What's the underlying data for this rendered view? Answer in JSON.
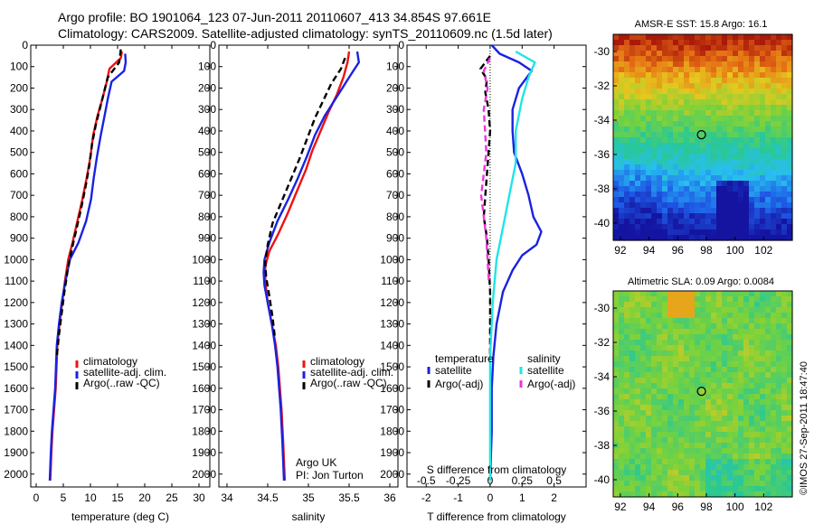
{
  "header": {
    "line1": "Argo profile: BO 1901064_123 07-Jun-2011 20110607_413 34.854S 97.661E",
    "line2": "Climatology: CARS2009. Satellite-adjusted climatology: synTS_20110609.nc (1.5d later)"
  },
  "colors": {
    "red": "#ee1111",
    "blue": "#1a22e0",
    "black": "#000000",
    "cyan": "#22e4e6",
    "magenta": "#ee33dd"
  },
  "depth_ticks": [
    "0",
    "100",
    "200",
    "300",
    "400",
    "500",
    "600",
    "700",
    "800",
    "900",
    "1000",
    "1100",
    "1200",
    "1300",
    "1400",
    "1500",
    "1600",
    "1700",
    "1800",
    "1900",
    "2000"
  ],
  "chart_data": [
    {
      "type": "line",
      "xlabel": "temperature (deg C)",
      "xticks": [
        "0",
        "5",
        "10",
        "15",
        "20",
        "25",
        "30"
      ],
      "xlim": [
        -1,
        32
      ],
      "ylim": [
        2060,
        0
      ],
      "legend": [
        "climatology",
        "satellite-adj. clim.",
        "Argo(..raw -QC)"
      ],
      "series": [
        {
          "name": "climatology",
          "color": "red",
          "x": [
            15.8,
            15.6,
            13.5,
            13.0,
            12.2,
            11.3,
            10.5,
            10.0,
            9.3,
            8.5,
            7.6,
            6.7,
            5.9,
            5.3,
            4.8,
            4.3,
            3.9,
            3.6,
            3.3,
            3.0,
            2.8,
            2.6
          ],
          "y": [
            30,
            60,
            110,
            170,
            250,
            330,
            420,
            520,
            620,
            720,
            820,
            920,
            1000,
            1100,
            1200,
            1300,
            1400,
            1600,
            1700,
            1800,
            1900,
            2030
          ]
        },
        {
          "name": "satellite-adj. clim.",
          "color": "blue",
          "x": [
            16.4,
            16.5,
            16.2,
            13.9,
            13.2,
            12.6,
            11.9,
            11.2,
            10.6,
            10.1,
            9.2,
            7.8,
            6.2,
            5.4,
            4.7,
            4.2,
            3.8,
            3.5,
            3.2,
            2.9,
            2.7,
            2.5
          ],
          "y": [
            40,
            80,
            120,
            170,
            250,
            330,
            420,
            520,
            620,
            720,
            820,
            920,
            1000,
            1100,
            1200,
            1300,
            1400,
            1600,
            1700,
            1800,
            1900,
            2030
          ]
        },
        {
          "name": "Argo(..raw -QC)",
          "color": "black",
          "dashed": true,
          "x": [
            15.6,
            15.3,
            13.2,
            12.6,
            11.8,
            11.0,
            10.3,
            9.8,
            9.1,
            8.3,
            7.4,
            6.5,
            5.8,
            5.2,
            4.7,
            4.2,
            3.8
          ],
          "y": [
            20,
            80,
            150,
            210,
            290,
            370,
            460,
            560,
            660,
            760,
            860,
            960,
            1050,
            1150,
            1250,
            1350,
            1450
          ]
        }
      ]
    },
    {
      "type": "line",
      "xlabel": "salinity",
      "xticks": [
        "34",
        "34.5",
        "35",
        "35.5",
        "36"
      ],
      "xlim": [
        33.9,
        36.1
      ],
      "ylim": [
        2060,
        0
      ],
      "legend": [
        "climatology",
        "satellite-adj. clim.",
        "Argo(..raw -QC)"
      ],
      "annotation": [
        "Argo UK",
        "PI: Jon Turton"
      ],
      "series": [
        {
          "name": "climatology",
          "color": "red",
          "x": [
            35.5,
            35.48,
            35.43,
            35.35,
            35.25,
            35.15,
            35.05,
            34.97,
            34.86,
            34.75,
            34.63,
            34.52,
            34.47,
            34.47,
            34.5,
            34.55,
            34.6,
            34.63,
            34.65,
            34.67,
            34.69,
            34.71
          ],
          "y": [
            30,
            80,
            150,
            230,
            310,
            400,
            490,
            580,
            680,
            780,
            880,
            960,
            1030,
            1100,
            1200,
            1300,
            1400,
            1500,
            1600,
            1700,
            1850,
            2030
          ]
        },
        {
          "name": "satellite-adj. clim.",
          "color": "blue",
          "x": [
            35.6,
            35.62,
            35.5,
            35.35,
            35.2,
            35.08,
            34.98,
            34.87,
            34.75,
            34.62,
            34.52,
            34.46,
            34.45,
            34.46,
            34.5,
            34.55,
            34.59,
            34.62,
            34.64,
            34.66,
            34.68,
            34.7
          ],
          "y": [
            30,
            80,
            150,
            240,
            330,
            420,
            520,
            620,
            720,
            820,
            920,
            1000,
            1060,
            1120,
            1200,
            1300,
            1400,
            1500,
            1600,
            1700,
            1850,
            2030
          ]
        },
        {
          "name": "Argo(..raw -QC)",
          "color": "black",
          "dashed": true,
          "x": [
            35.45,
            35.4,
            35.28,
            35.18,
            35.08,
            34.99,
            34.89,
            34.78,
            34.67,
            34.56,
            34.5,
            34.47,
            34.48,
            34.52,
            34.56,
            34.59
          ],
          "y": [
            60,
            110,
            180,
            260,
            340,
            430,
            530,
            630,
            730,
            830,
            930,
            1010,
            1080,
            1170,
            1270,
            1370
          ]
        }
      ]
    },
    {
      "type": "line",
      "xlabel": "T difference from climatology",
      "xticks": [
        "-2",
        "-1",
        "0",
        "1",
        "2"
      ],
      "xlabel2": "S difference from climatology",
      "xticks2": [
        "-0.5",
        "-0.25",
        "0",
        "0.25",
        "0.5"
      ],
      "xlim": [
        -2.6,
        3.0
      ],
      "ylim": [
        2060,
        0
      ],
      "legend": [
        "temperature",
        "satellite",
        "Argo(-adj)",
        "salinity",
        "satellite",
        "Argo(-adj)"
      ],
      "series": [
        {
          "name": "temperature satellite",
          "color": "blue",
          "x": [
            0.05,
            0.3,
            0.9,
            1.3,
            0.9,
            0.7,
            0.7,
            0.75,
            1.0,
            1.2,
            1.35,
            1.6,
            1.45,
            1.0,
            0.7,
            0.4,
            0.2,
            0.1,
            0.05,
            0.05,
            0.0
          ],
          "y": [
            0,
            40,
            80,
            120,
            200,
            300,
            400,
            500,
            600,
            700,
            800,
            870,
            930,
            980,
            1050,
            1150,
            1300,
            1450,
            1600,
            1800,
            2030
          ]
        },
        {
          "name": "temperature Argo(-adj)",
          "color": "black",
          "dashed": true,
          "x": [
            0.0,
            -0.3,
            -0.1,
            -0.15,
            -0.05,
            0.0,
            -0.05,
            -0.1,
            -0.15,
            -0.2,
            -0.1,
            -0.05,
            0.0,
            0.0,
            0.0
          ],
          "y": [
            50,
            110,
            160,
            220,
            300,
            400,
            500,
            600,
            700,
            800,
            900,
            1000,
            1150,
            1300,
            1450
          ]
        },
        {
          "name": "salinity satellite",
          "color": "cyan",
          "x": [
            0.2,
            0.35,
            0.3,
            0.25,
            0.2,
            0.2,
            0.15,
            0.1,
            0.05,
            0.02,
            0.0,
            0.0,
            0.0
          ],
          "y": [
            30,
            80,
            150,
            250,
            400,
            550,
            700,
            850,
            1000,
            1200,
            1450,
            1700,
            2030
          ]
        },
        {
          "name": "salinity Argo(-adj)",
          "color": "magenta",
          "dashed": true,
          "x": [
            0.0,
            -0.05,
            -0.02,
            -0.05,
            -0.04,
            -0.03,
            -0.05,
            -0.07,
            -0.05,
            -0.03,
            -0.02,
            -0.01
          ],
          "y": [
            60,
            120,
            200,
            300,
            400,
            500,
            600,
            700,
            800,
            900,
            1000,
            1100
          ]
        }
      ]
    },
    {
      "type": "heatmap",
      "title": "AMSR-E SST: 15.8 Argo: 16.1",
      "xticks": [
        "92",
        "94",
        "96",
        "98",
        "100",
        "102"
      ],
      "yticks": [
        "-30",
        "-32",
        "-34",
        "-36",
        "-38",
        "-40"
      ],
      "xlim": [
        91.5,
        104
      ],
      "ylim": [
        -41,
        -29
      ],
      "marker": {
        "lon": 97.66,
        "lat": -34.85
      }
    },
    {
      "type": "heatmap",
      "title": "Altimetric SLA: 0.09 Argo: 0.0084",
      "xticks": [
        "92",
        "94",
        "96",
        "98",
        "100",
        "102"
      ],
      "yticks": [
        "-30",
        "-32",
        "-34",
        "-36",
        "-38",
        "-40"
      ],
      "xlim": [
        91.5,
        104
      ],
      "ylim": [
        -41,
        -29
      ],
      "marker": {
        "lon": 97.66,
        "lat": -34.85
      }
    }
  ],
  "footer": "©IMOS 27-Sep-2011 18:47:40"
}
